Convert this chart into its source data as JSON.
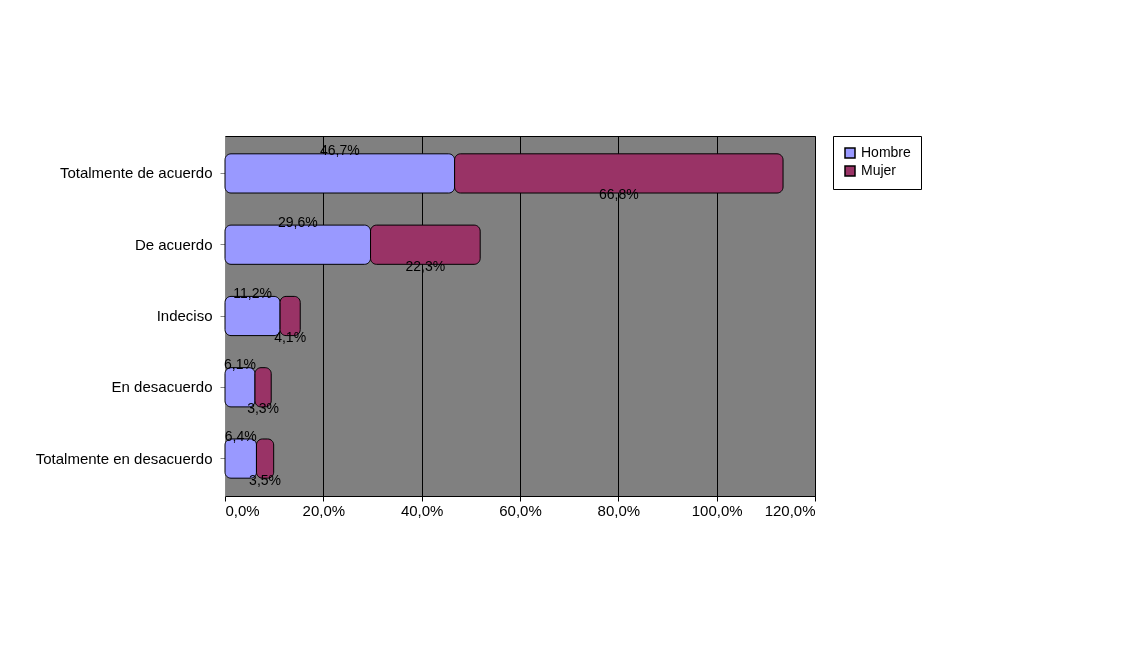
{
  "chart_data": {
    "type": "bar",
    "orientation": "horizontal",
    "stacked": true,
    "categories": [
      "Totalmente de acuerdo",
      "De acuerdo",
      "Indeciso",
      "En desacuerdo",
      "Totalmente en desacuerdo"
    ],
    "series": [
      {
        "name": "Hombre",
        "color": "#9999ff",
        "values": [
          46.7,
          29.6,
          11.2,
          6.1,
          6.4
        ],
        "value_labels": [
          "46,7%",
          "29,6%",
          "11,2%",
          "6,1%",
          "6,4%"
        ]
      },
      {
        "name": "Mujer",
        "color": "#993366",
        "values": [
          66.8,
          22.3,
          4.1,
          3.3,
          3.5
        ],
        "value_labels": [
          "66,8%",
          "22,3%",
          "4,1%",
          "3,3%",
          "3,5%"
        ]
      }
    ],
    "xlim": [
      0,
      120
    ],
    "xticks": [
      {
        "value": 0,
        "label": "0,0%"
      },
      {
        "value": 20,
        "label": "20,0%"
      },
      {
        "value": 40,
        "label": "40,0%"
      },
      {
        "value": 60,
        "label": "60,0%"
      },
      {
        "value": 80,
        "label": "80,0%"
      },
      {
        "value": 100,
        "label": "100,0%"
      },
      {
        "value": 120,
        "label": "120,0%"
      }
    ],
    "grid": "x",
    "legend": "right"
  }
}
